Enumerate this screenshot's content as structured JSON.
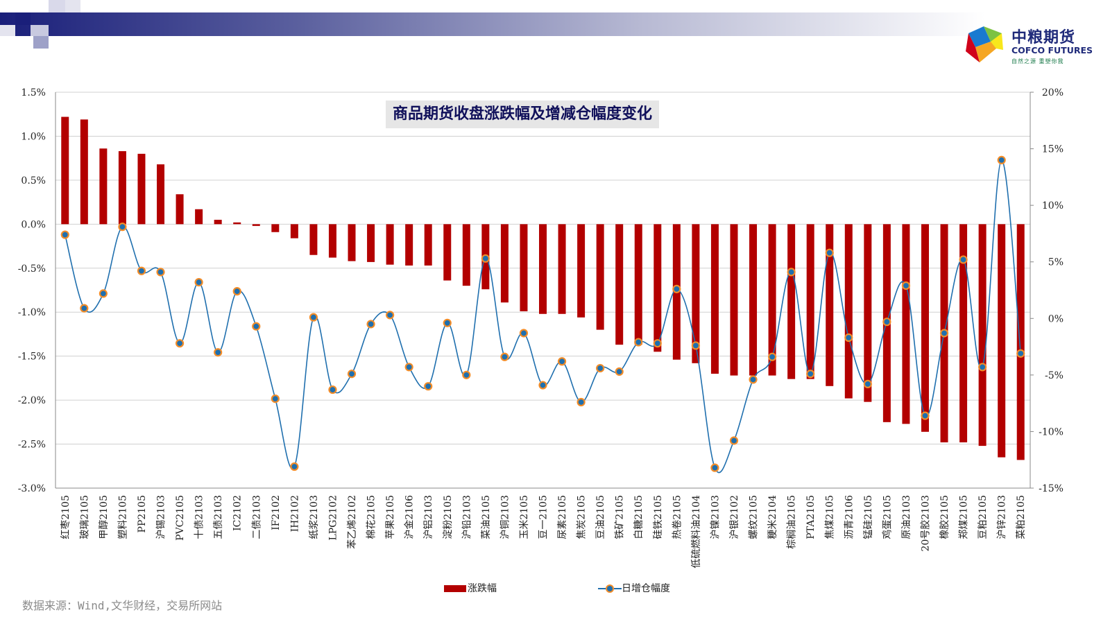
{
  "logo": {
    "cn": "中粮期货",
    "en": "COFCO FUTURES",
    "sub": "自然之源  重塑你我"
  },
  "source": "数据来源：Wind,文华财经，交易所网站",
  "chart_data": {
    "type": "bar+line",
    "title": "商品期货收盘涨跌幅及增减仓幅度变化",
    "categories": [
      "红枣2105",
      "玻璃2105",
      "甲醇2105",
      "塑料2105",
      "PP2105",
      "沪锡2103",
      "PVC2105",
      "十债2103",
      "五债2103",
      "IC2102",
      "二债2103",
      "IF2102",
      "IH2102",
      "纸浆2103",
      "LPG2102",
      "苯乙烯2102",
      "棉花2105",
      "苹果2105",
      "沪金2106",
      "沪铝2103",
      "淀粉2105",
      "沪铅2103",
      "菜油2105",
      "沪铜2103",
      "玉米2105",
      "豆一2105",
      "尿素2105",
      "焦炭2105",
      "豆油2105",
      "铁矿2105",
      "白糖2105",
      "硅铁2105",
      "热卷2105",
      "低硫燃料油2104",
      "沪镍2103",
      "沪银2102",
      "螺纹2105",
      "粳米2104",
      "棕榈油2105",
      "PTA2105",
      "焦煤2105",
      "沥青2106",
      "锰硅2105",
      "鸡蛋2105",
      "原油2103",
      "20号胶2103",
      "橡胶2105",
      "郑煤2105",
      "豆粕2105",
      "沪锌2103",
      "菜粕2105"
    ],
    "series": [
      {
        "name": "涨跌幅",
        "axis": "left",
        "type": "bar",
        "color": "#b30000",
        "values": [
          1.22,
          1.19,
          0.86,
          0.83,
          0.8,
          0.68,
          0.34,
          0.17,
          0.05,
          0.02,
          -0.02,
          -0.09,
          -0.16,
          -0.35,
          -0.38,
          -0.42,
          -0.43,
          -0.46,
          -0.47,
          -0.47,
          -0.64,
          -0.7,
          -0.74,
          -0.89,
          -0.99,
          -1.02,
          -1.02,
          -1.06,
          -1.2,
          -1.37,
          -1.37,
          -1.45,
          -1.54,
          -1.58,
          -1.7,
          -1.72,
          -1.72,
          -1.72,
          -1.76,
          -1.76,
          -1.84,
          -1.98,
          -2.02,
          -2.25,
          -2.27,
          -2.36,
          -2.48,
          -2.48,
          -2.52,
          -2.65,
          -2.68
        ]
      },
      {
        "name": "日增仓幅度",
        "axis": "right",
        "type": "line",
        "color": "#1f6fae",
        "values": [
          7.4,
          0.9,
          2.2,
          8.1,
          4.2,
          4.1,
          -2.2,
          3.2,
          -3.0,
          2.4,
          -0.7,
          -7.1,
          -13.1,
          0.1,
          -6.3,
          -4.9,
          -0.5,
          0.3,
          -4.3,
          -6.0,
          -0.4,
          -5.0,
          5.3,
          -3.4,
          -1.3,
          -5.9,
          -3.8,
          -7.4,
          -4.4,
          -4.7,
          -2.1,
          -2.2,
          2.6,
          -2.4,
          -13.2,
          -10.8,
          -5.4,
          -3.4,
          4.1,
          -4.9,
          5.8,
          -1.7,
          -5.8,
          -0.3,
          2.9,
          -8.6,
          -1.3,
          5.2,
          -4.3,
          14.0,
          -3.1
        ]
      }
    ],
    "y_left": {
      "min": -3.0,
      "max": 1.5,
      "step": 0.5,
      "ticks": [
        "1.5%",
        "1.0%",
        "0.5%",
        "0.0%",
        "-0.5%",
        "-1.0%",
        "-1.5%",
        "-2.0%",
        "-2.5%",
        "-3.0%"
      ]
    },
    "y_right": {
      "min": -15,
      "max": 20,
      "step": 5,
      "ticks": [
        "20%",
        "15%",
        "10%",
        "5%",
        "0%",
        "-5%",
        "-10%",
        "-15%"
      ]
    },
    "grid": "horizontal",
    "legend": "bottom"
  }
}
